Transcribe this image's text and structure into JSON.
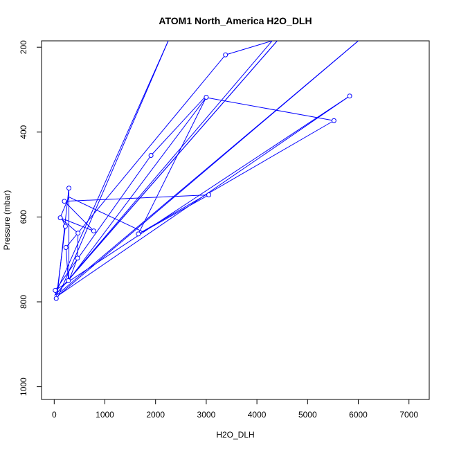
{
  "chart_data": {
    "type": "line",
    "title": "ATOM1 North_America H2O_DLH",
    "xlabel": "H2O_DLH",
    "ylabel": "Pressure (mbar)",
    "xlim": [
      -250,
      7400
    ],
    "ylim": [
      1030,
      185
    ],
    "y_reversed": true,
    "x_ticks": [
      0,
      1000,
      2000,
      3000,
      4000,
      5000,
      6000,
      7000
    ],
    "x_tick_labels": [
      "0",
      "1000",
      "2000",
      "3000",
      "4000",
      "5000",
      "6000",
      "7000"
    ],
    "y_ticks": [
      200,
      400,
      600,
      800,
      1000
    ],
    "y_tick_labels": [
      "200",
      "400",
      "600",
      "800",
      "1000"
    ],
    "grid": false,
    "legend": "none",
    "series": [
      {
        "color": "#0000ff",
        "x": [
          60,
          2250,
          10,
          4400,
          30,
          4300,
          3380,
          230,
          280,
          3000,
          1660,
          5520,
          2970,
          1910,
          20,
          5830,
          80,
          6000,
          60,
          290,
          290,
          460,
          470,
          120,
          780,
          200,
          3050,
          1750,
          290,
          130,
          220,
          40
        ],
        "y": [
          792,
          185,
          785,
          185,
          783,
          185,
          218,
          672,
          750,
          318,
          640,
          373,
          318,
          455,
          773,
          315,
          785,
          185,
          783,
          532,
          750,
          697,
          638,
          602,
          633,
          563,
          548,
          635,
          553,
          598,
          622,
          792
        ],
        "markers": [
          false,
          false,
          false,
          false,
          false,
          false,
          true,
          true,
          true,
          true,
          true,
          true,
          false,
          true,
          true,
          true,
          false,
          false,
          false,
          true,
          false,
          true,
          true,
          true,
          true,
          true,
          true,
          false,
          false,
          false,
          true,
          true
        ]
      }
    ]
  }
}
